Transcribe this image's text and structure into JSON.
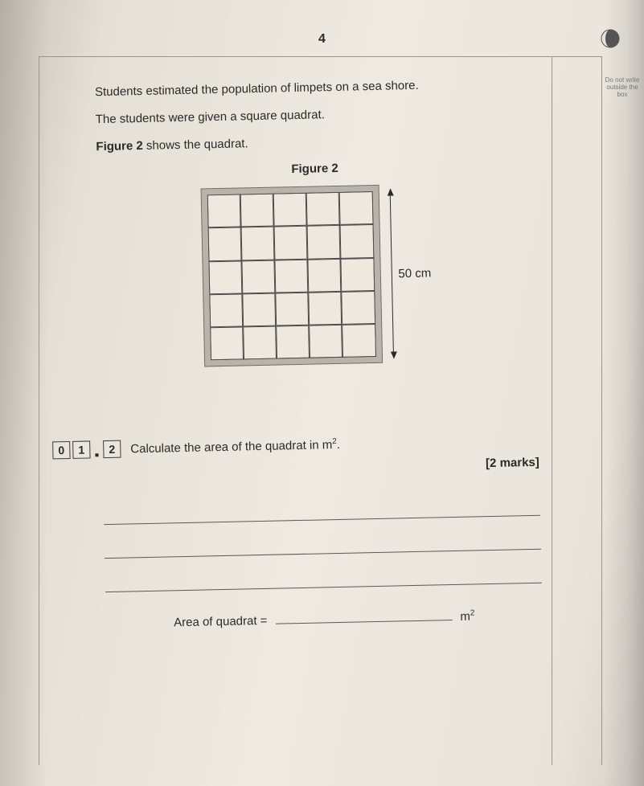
{
  "page_number": "4",
  "margin_note": "Do not write outside the box",
  "intro": {
    "line1": "Students estimated the population of limpets on a sea shore.",
    "line2": "The students were given a square quadrat.",
    "line3_prefix": "Figure 2",
    "line3_rest": " shows the quadrat."
  },
  "figure": {
    "label": "Figure 2",
    "grid": {
      "rows": 5,
      "cols": 5
    },
    "frame_color": "#b8b4ab",
    "line_color": "#4a4a4a",
    "dimension_label": "50 cm"
  },
  "question": {
    "number_boxes": [
      "0",
      "1",
      "2"
    ],
    "text_before_unit": "Calculate the area of the quadrat in m",
    "unit_sup": "2",
    "text_after_unit": ".",
    "marks": "[2 marks]",
    "answer_label": "Area of quadrat =",
    "answer_unit": "m",
    "answer_unit_sup": "2"
  }
}
